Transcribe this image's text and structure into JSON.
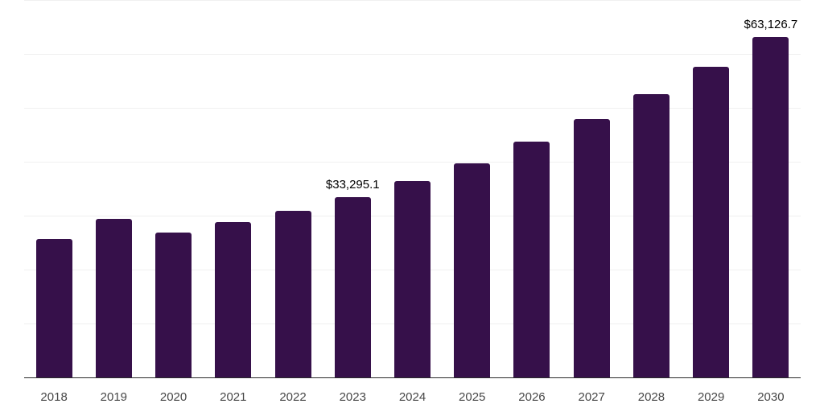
{
  "chart_data": {
    "type": "bar",
    "title": "",
    "xlabel": "",
    "ylabel": "",
    "categories": [
      "2018",
      "2019",
      "2020",
      "2021",
      "2022",
      "2023",
      "2024",
      "2025",
      "2026",
      "2027",
      "2028",
      "2029",
      "2030"
    ],
    "values": [
      25650,
      29400,
      26750,
      28700,
      30850,
      33295.1,
      36300,
      39650,
      43650,
      47800,
      52500,
      57600,
      63126.7
    ],
    "data_labels": {
      "2023": "$33,295.1",
      "2030": "$63,126.7"
    },
    "ylim": [
      0,
      70000
    ],
    "grid_step": 10000,
    "grid": true,
    "legend": false,
    "y_axis_labels_visible": false,
    "colors": {
      "bar": "#36104A",
      "axis_line": "#2B2B2B",
      "gridline": "#F0F0F0",
      "tick_label": "#474747",
      "data_label": "#000000",
      "background": "#FFFFFF"
    }
  }
}
